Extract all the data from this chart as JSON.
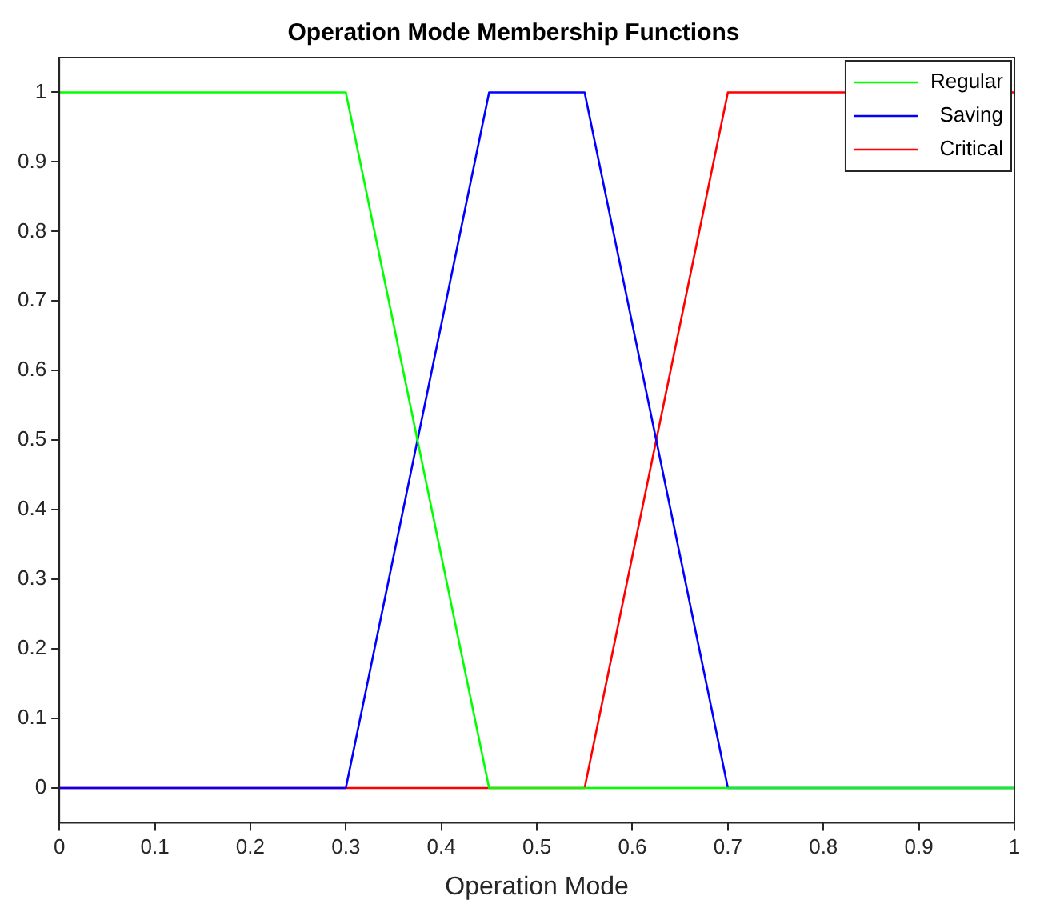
{
  "chart_data": {
    "type": "line",
    "title": "Operation Mode Membership Functions",
    "xlabel": "Operation Mode",
    "xlim": [
      0,
      1
    ],
    "xticks": [
      0,
      0.1,
      0.2,
      0.3,
      0.4,
      0.5,
      0.6,
      0.7,
      0.8,
      0.9,
      1
    ],
    "ylim": [
      -0.05,
      1.05
    ],
    "yticks": [
      0,
      0.1,
      0.2,
      0.3,
      0.4,
      0.5,
      0.6,
      0.7,
      0.8,
      0.9,
      1
    ],
    "grid": false,
    "legend": "top right",
    "marker": "none",
    "line_style": "solid",
    "series": [
      {
        "name": "Regular",
        "color": "#00ff00",
        "x": [
          0,
          0.3,
          0.45,
          1
        ],
        "values": [
          1,
          1,
          0,
          0
        ]
      },
      {
        "name": "Saving",
        "color": "#0000ff",
        "x": [
          0,
          0.3,
          0.45,
          0.55,
          0.7,
          1
        ],
        "values": [
          0,
          0,
          1,
          1,
          0,
          0
        ]
      },
      {
        "name": "Critical",
        "color": "#ff0000",
        "x": [
          0,
          0.55,
          0.7,
          1
        ],
        "values": [
          0,
          0,
          1,
          1
        ]
      }
    ]
  }
}
